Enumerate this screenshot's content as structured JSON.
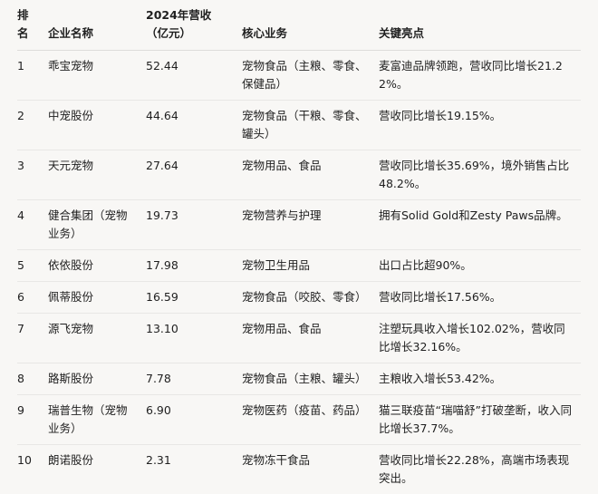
{
  "headers": [
    "排名",
    "企业名称",
    "2024年营收（亿元）",
    "核心业务",
    "关键亮点"
  ],
  "rows": [
    {
      "rank": "1",
      "name": "乖宝宠物",
      "revenue": "52.44",
      "business": "宠物食品（主粮、零食、保健品）",
      "highlight": "麦富迪品牌领跑，营收同比增长21.22%。"
    },
    {
      "rank": "2",
      "name": "中宠股份",
      "revenue": "44.64",
      "business": "宠物食品（干粮、零食、罐头）",
      "highlight": "营收同比增长19.15%。"
    },
    {
      "rank": "3",
      "name": "天元宠物",
      "revenue": "27.64",
      "business": "宠物用品、食品",
      "highlight": "营收同比增长35.69%，境外销售占比48.2%。"
    },
    {
      "rank": "4",
      "name": "健合集团（宠物业务）",
      "revenue": "19.73",
      "business": "宠物营养与护理",
      "highlight": "拥有Solid Gold和Zesty Paws品牌。"
    },
    {
      "rank": "5",
      "name": "依依股份",
      "revenue": "17.98",
      "business": "宠物卫生用品",
      "highlight": "出口占比超90%。"
    },
    {
      "rank": "6",
      "name": "佩蒂股份",
      "revenue": "16.59",
      "business": "宠物食品（咬胶、零食）",
      "highlight": "营收同比增长17.56%。"
    },
    {
      "rank": "7",
      "name": "源飞宠物",
      "revenue": "13.10",
      "business": "宠物用品、食品",
      "highlight": "注塑玩具收入增长102.02%，营收同比增长32.16%。"
    },
    {
      "rank": "8",
      "name": "路斯股份",
      "revenue": "7.78",
      "business": "宠物食品（主粮、罐头）",
      "highlight": "主粮收入增长53.42%。"
    },
    {
      "rank": "9",
      "name": "瑞普生物（宠物业务）",
      "revenue": "6.90",
      "business": "宠物医药（疫苗、药品）",
      "highlight": "猫三联疫苗“瑞喵舒”打破垄断，收入同比增长37.7%。"
    },
    {
      "rank": "10",
      "name": "朗诺股份",
      "revenue": "2.31",
      "business": "宠物冻干食品",
      "highlight": "营收同比增长22.28%，高端市场表现突出。"
    }
  ]
}
